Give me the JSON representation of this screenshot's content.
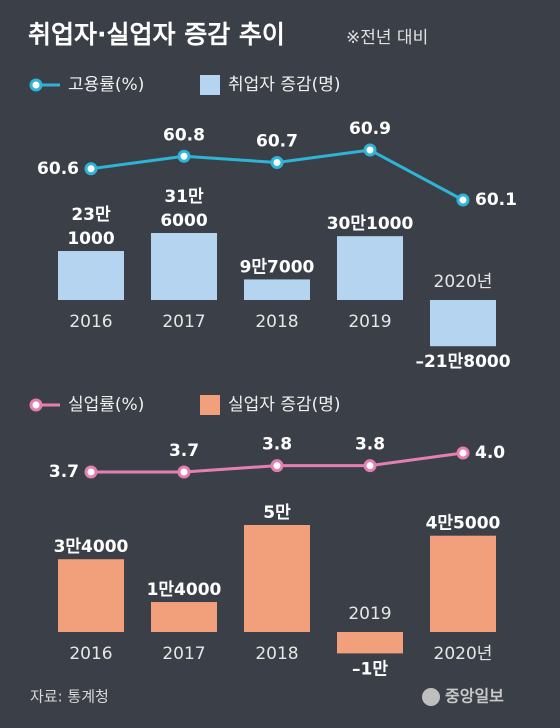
{
  "title": "취업자·실업자 증감 추이",
  "subtitle": "※전년 대비",
  "source": "자료: 통계청",
  "logo": "중앙일보",
  "chart_data": [
    {
      "type": "combo",
      "categories": [
        "2016",
        "2017",
        "2018",
        "2019",
        "2020년"
      ],
      "series": [
        {
          "name": "고용률(%)",
          "type": "line",
          "color": "#2db4d6",
          "values": [
            60.6,
            60.8,
            60.7,
            60.9,
            60.1
          ]
        },
        {
          "name": "취업자 증감(명)",
          "type": "bar",
          "color": "#b4d4f0",
          "values": [
            231000,
            316000,
            97000,
            301000,
            -218000
          ],
          "value_labels": [
            "23만 1000",
            "31만 6000",
            "9만7000",
            "30만1000",
            "–21만8000"
          ]
        }
      ]
    },
    {
      "type": "combo",
      "categories": [
        "2016",
        "2017",
        "2018",
        "2019",
        "2020년"
      ],
      "series": [
        {
          "name": "실업률(%)",
          "type": "line",
          "color": "#e57fb2",
          "values": [
            3.7,
            3.7,
            3.8,
            3.8,
            4.0
          ],
          "value_labels": [
            "3.7",
            "3.7",
            "3.8",
            "3.8",
            "4.0"
          ]
        },
        {
          "name": "실업자 증감(명)",
          "type": "bar",
          "color": "#f2a07c",
          "values": [
            34000,
            14000,
            50000,
            -10000,
            45000
          ],
          "value_labels": [
            "3만4000",
            "1만4000",
            "5만",
            "–1만",
            "4만5000"
          ]
        }
      ]
    }
  ]
}
